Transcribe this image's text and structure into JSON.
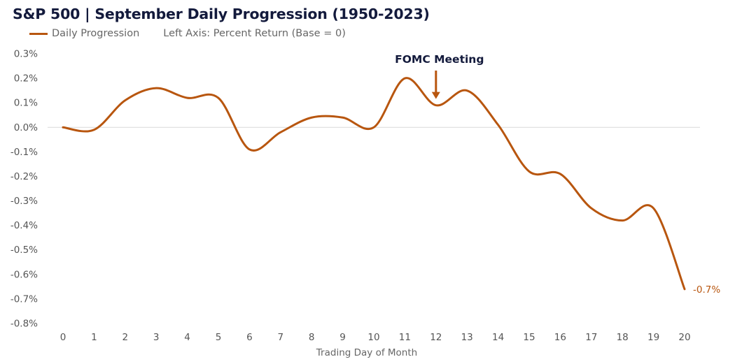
{
  "chart_data": {
    "type": "line",
    "title": "S&P 500 | September Daily Progression (1950-2023)",
    "legend_label": "Daily Progression",
    "legend_note": "Left Axis: Percent Return (Base = 0)",
    "legend_placement": "top-left",
    "xlabel": "Trading Day of Month",
    "ylabel": "",
    "x": [
      0,
      1,
      2,
      3,
      4,
      5,
      6,
      7,
      8,
      9,
      10,
      11,
      12,
      13,
      14,
      15,
      16,
      17,
      18,
      19,
      20
    ],
    "x_tick_labels": [
      "0",
      "1",
      "2",
      "3",
      "4",
      "5",
      "6",
      "7",
      "8",
      "9",
      "10",
      "11",
      "12",
      "13",
      "14",
      "15",
      "16",
      "17",
      "18",
      "19",
      "20"
    ],
    "ylim": [
      -0.8,
      0.3
    ],
    "y_ticks": [
      0.3,
      0.2,
      0.1,
      0.0,
      -0.1,
      -0.2,
      -0.3,
      -0.4,
      -0.5,
      -0.6,
      -0.7,
      -0.8
    ],
    "y_tick_labels": [
      "0.3%",
      "0.2%",
      "0.1%",
      "0.0%",
      "-0.1%",
      "-0.2%",
      "-0.3%",
      "-0.4%",
      "-0.5%",
      "-0.6%",
      "-0.7%",
      "-0.8%"
    ],
    "series": [
      {
        "name": "Daily Progression",
        "color": "#b8560f",
        "values": [
          0.0,
          -0.01,
          0.11,
          0.16,
          0.12,
          0.12,
          -0.09,
          -0.02,
          0.04,
          0.04,
          0.0,
          0.2,
          0.09,
          0.15,
          0.01,
          -0.18,
          -0.19,
          -0.33,
          -0.38,
          -0.33,
          -0.66
        ]
      }
    ],
    "annotations": [
      {
        "text": "FOMC Meeting",
        "x": 12,
        "arrow_to_y": 0.11
      }
    ],
    "end_label": "-0.7%",
    "grid": false,
    "zero_line": true
  }
}
